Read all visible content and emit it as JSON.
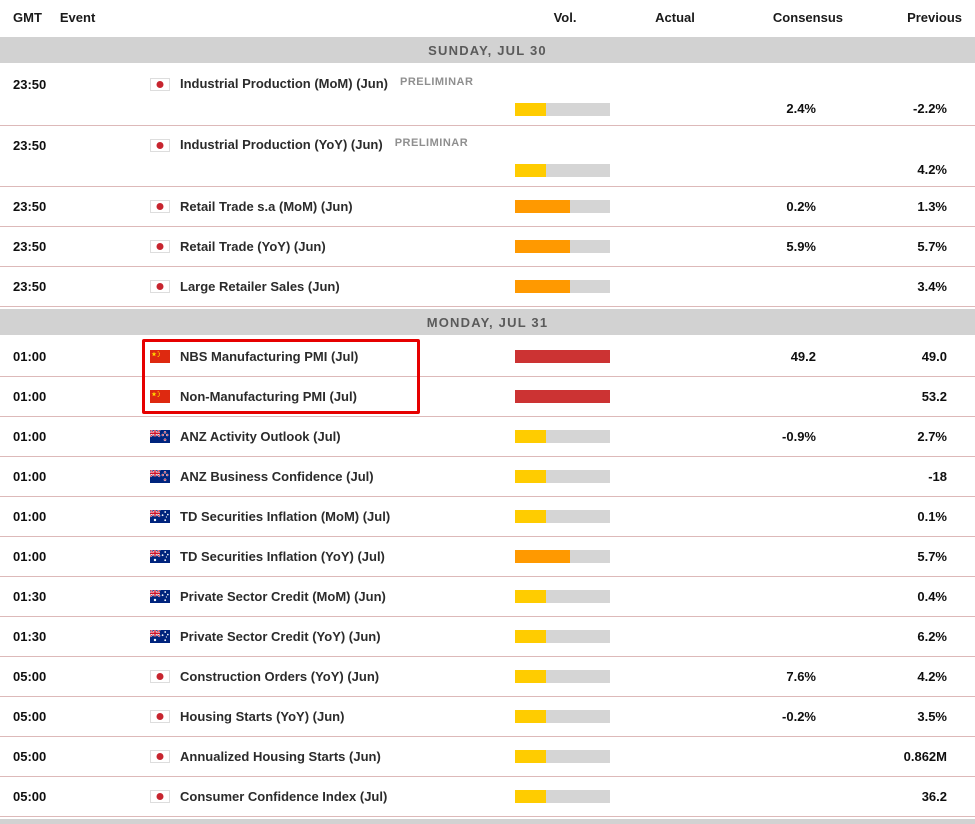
{
  "table_header": {
    "gmt": "GMT",
    "event": "Event",
    "vol": "Vol.",
    "actual": "Actual",
    "consensus": "Consensus",
    "previous": "Previous"
  },
  "volatility_colors": {
    "low": "#FFCC00",
    "medium": "#FF9900",
    "high": "#CC3333"
  },
  "highlight_color": "#E60000",
  "sections": [
    {
      "title": "SUNDAY, JUL 30",
      "rows": [
        {
          "time": "23:50",
          "country": "japan",
          "event": "Industrial Production (MoM) (Jun)",
          "note": "PRELIMINAR",
          "vol": "low",
          "actual": "",
          "consensus": "2.4%",
          "previous": "-2.2%",
          "highlight": false
        },
        {
          "time": "23:50",
          "country": "japan",
          "event": "Industrial Production (YoY) (Jun)",
          "note": "PRELIMINAR",
          "vol": "low",
          "actual": "",
          "consensus": "",
          "previous": "4.2%",
          "highlight": false
        },
        {
          "time": "23:50",
          "country": "japan",
          "event": "Retail Trade s.a (MoM) (Jun)",
          "vol": "medium",
          "actual": "",
          "consensus": "0.2%",
          "previous": "1.3%",
          "highlight": false
        },
        {
          "time": "23:50",
          "country": "japan",
          "event": "Retail Trade (YoY) (Jun)",
          "vol": "medium",
          "actual": "",
          "consensus": "5.9%",
          "previous": "5.7%",
          "highlight": false
        },
        {
          "time": "23:50",
          "country": "japan",
          "event": "Large Retailer Sales (Jun)",
          "vol": "medium",
          "actual": "",
          "consensus": "",
          "previous": "3.4%",
          "highlight": false
        }
      ]
    },
    {
      "title": "MONDAY, JUL 31",
      "rows": [
        {
          "time": "01:00",
          "country": "china",
          "event": "NBS Manufacturing PMI (Jul)",
          "vol": "high",
          "actual": "",
          "consensus": "49.2",
          "previous": "49.0",
          "highlight": true
        },
        {
          "time": "01:00",
          "country": "china",
          "event": "Non-Manufacturing PMI (Jul)",
          "vol": "high",
          "actual": "",
          "consensus": "",
          "previous": "53.2",
          "highlight": true
        },
        {
          "time": "01:00",
          "country": "new-zealand",
          "event": "ANZ Activity Outlook (Jul)",
          "vol": "low",
          "actual": "",
          "consensus": "-0.9%",
          "previous": "2.7%",
          "highlight": false
        },
        {
          "time": "01:00",
          "country": "new-zealand",
          "event": "ANZ Business Confidence (Jul)",
          "vol": "low",
          "actual": "",
          "consensus": "",
          "previous": "-18",
          "highlight": false
        },
        {
          "time": "01:00",
          "country": "australia",
          "event": "TD Securities Inflation (MoM) (Jul)",
          "vol": "low",
          "actual": "",
          "consensus": "",
          "previous": "0.1%",
          "highlight": false
        },
        {
          "time": "01:00",
          "country": "australia",
          "event": "TD Securities Inflation (YoY) (Jul)",
          "vol": "medium",
          "actual": "",
          "consensus": "",
          "previous": "5.7%",
          "highlight": false
        },
        {
          "time": "01:30",
          "country": "australia",
          "event": "Private Sector Credit (MoM) (Jun)",
          "vol": "low",
          "actual": "",
          "consensus": "",
          "previous": "0.4%",
          "highlight": false
        },
        {
          "time": "01:30",
          "country": "australia",
          "event": "Private Sector Credit (YoY) (Jun)",
          "vol": "low",
          "actual": "",
          "consensus": "",
          "previous": "6.2%",
          "highlight": false
        },
        {
          "time": "05:00",
          "country": "japan",
          "event": "Construction Orders (YoY) (Jun)",
          "vol": "low",
          "actual": "",
          "consensus": "7.6%",
          "previous": "4.2%",
          "highlight": false
        },
        {
          "time": "05:00",
          "country": "japan",
          "event": "Housing Starts (YoY) (Jun)",
          "vol": "low",
          "actual": "",
          "consensus": "-0.2%",
          "previous": "3.5%",
          "highlight": false
        },
        {
          "time": "05:00",
          "country": "japan",
          "event": "Annualized Housing Starts (Jun)",
          "vol": "low",
          "actual": "",
          "consensus": "",
          "previous": "0.862M",
          "highlight": false
        },
        {
          "time": "05:00",
          "country": "japan",
          "event": "Consumer Confidence Index (Jul)",
          "vol": "low",
          "actual": "",
          "consensus": "",
          "previous": "36.2",
          "highlight": false
        }
      ]
    }
  ]
}
